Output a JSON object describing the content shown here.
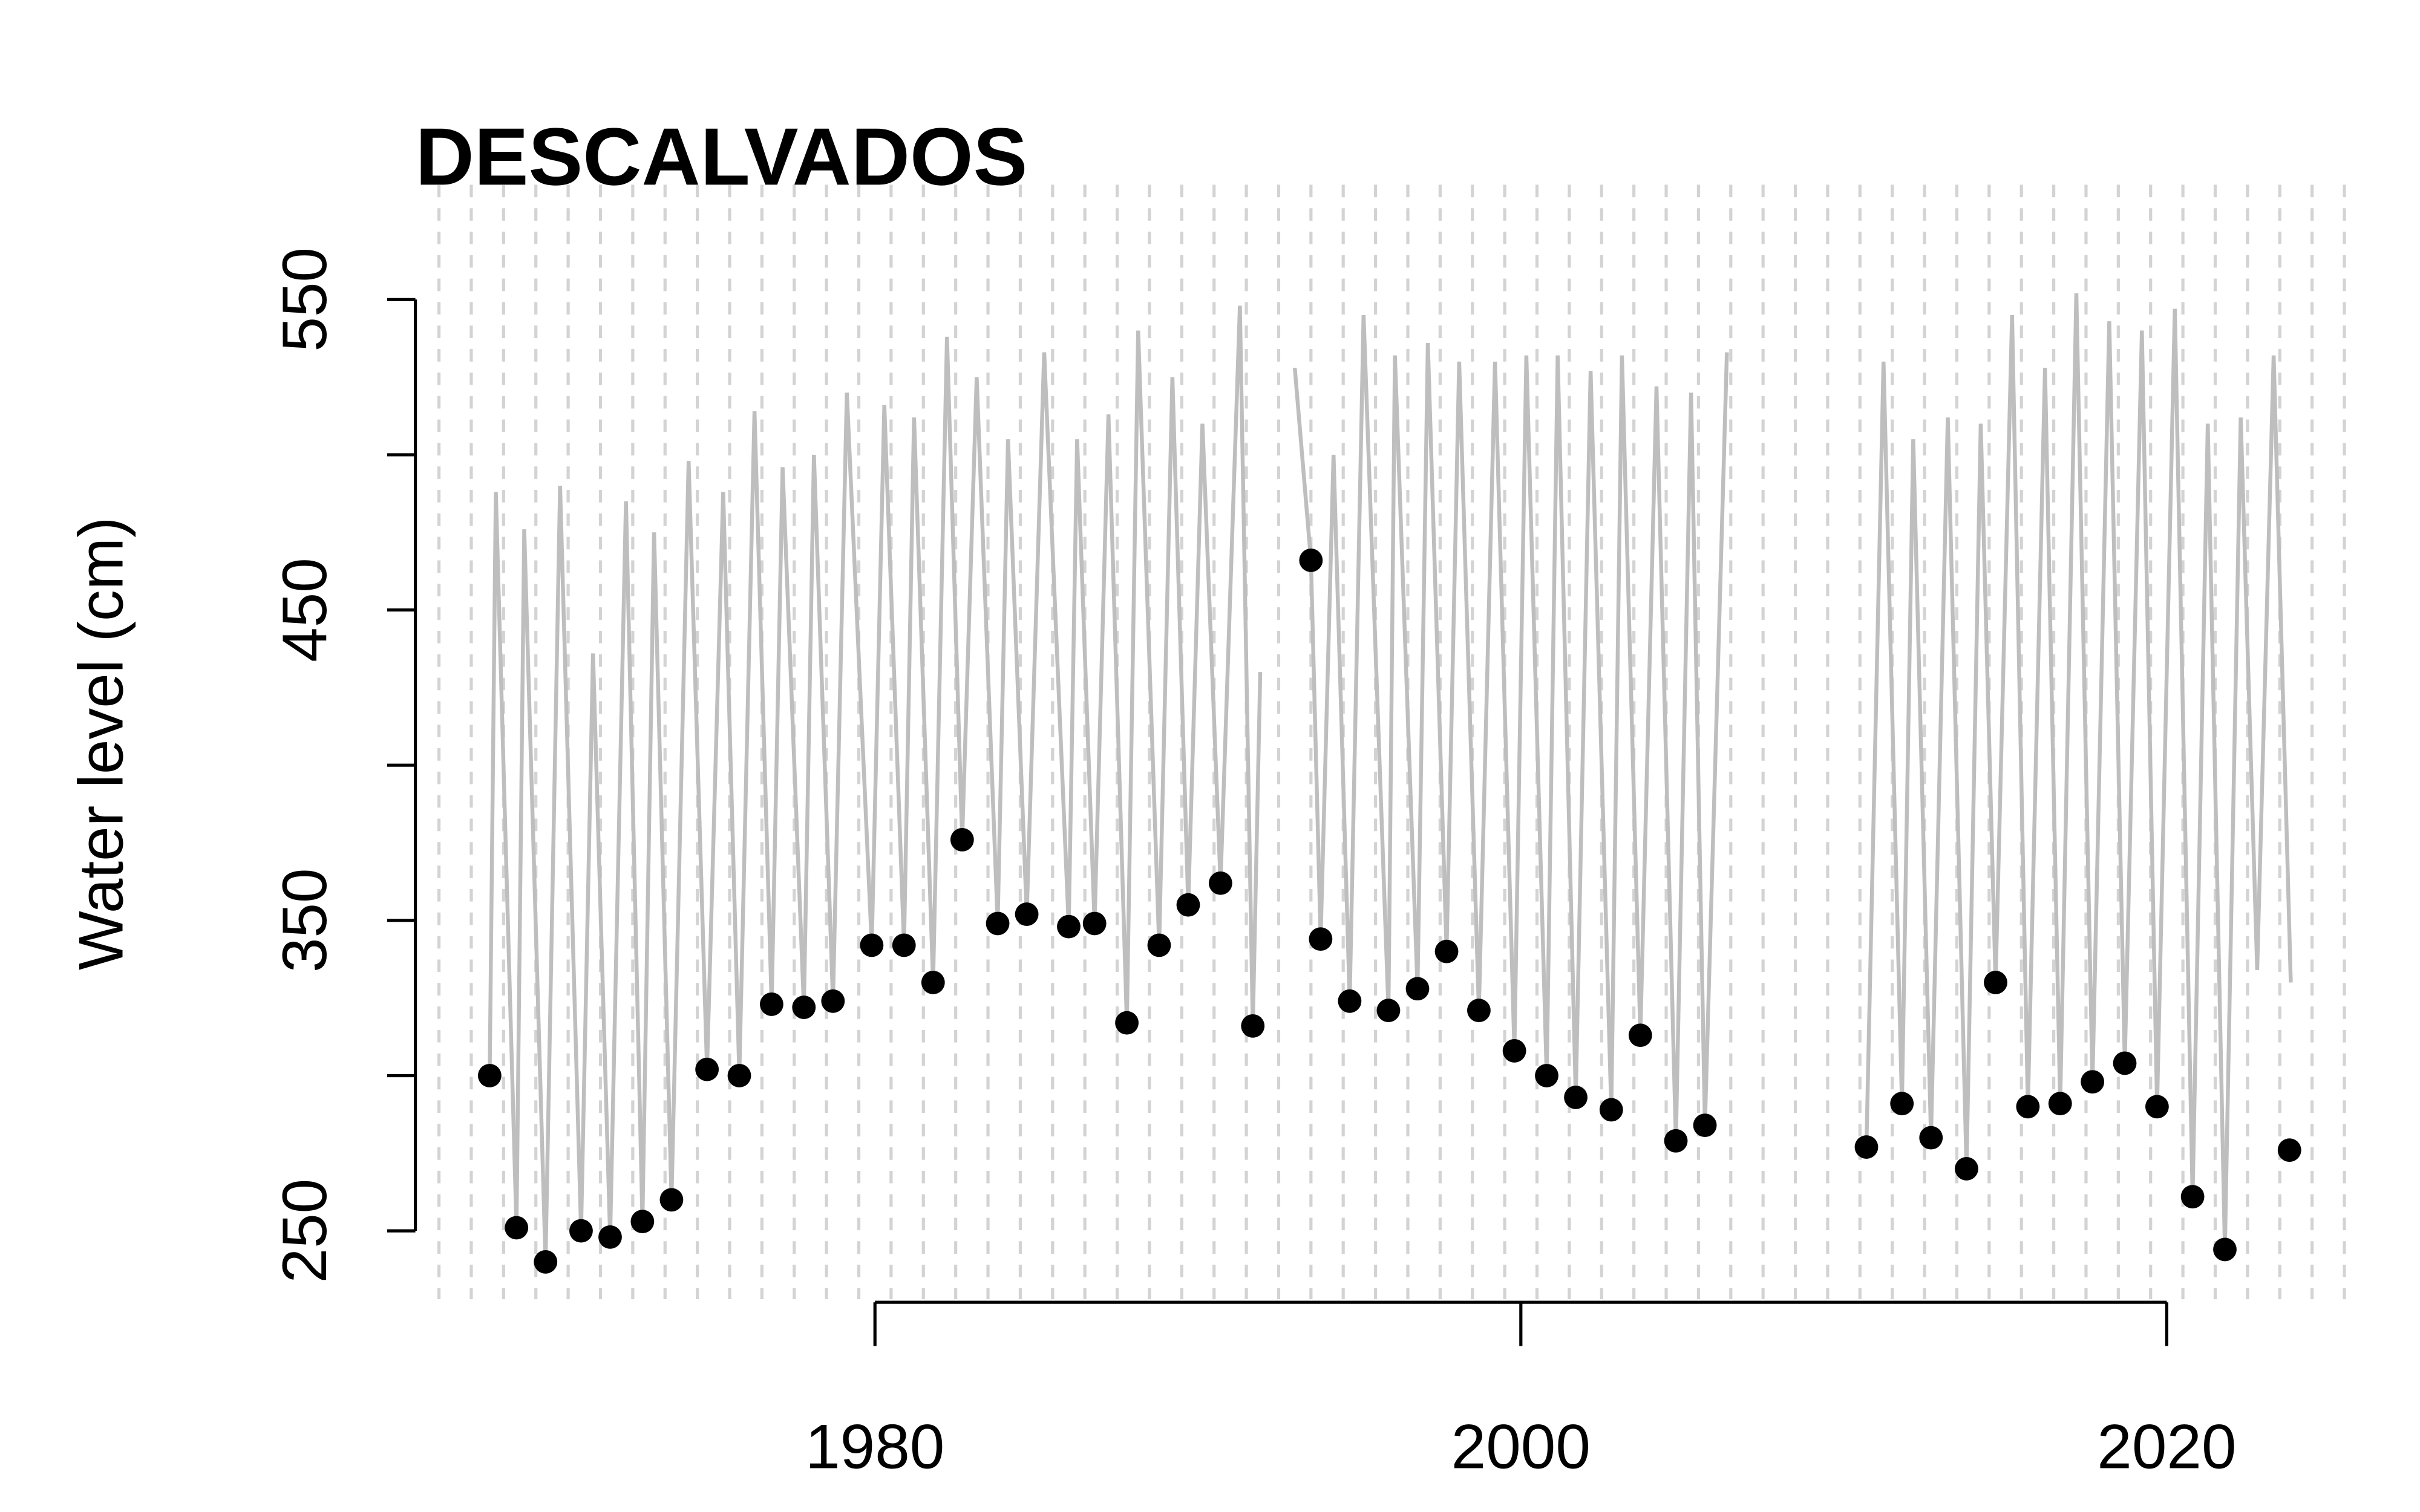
{
  "chart_data": {
    "type": "scatter",
    "title": "DESCALVADOS",
    "ylabel": "Water level (cm)",
    "xlim": [
      1966.4,
      2025.5
    ],
    "ylim": [
      228,
      587
    ],
    "xticks": [
      1980,
      2000,
      2020
    ],
    "yticks": [
      250,
      350,
      450,
      550
    ],
    "yticks_unlabeled": [
      300,
      400,
      500
    ],
    "xgrid": [
      1966.5,
      1967.5,
      1968.5,
      1969.5,
      1970.5,
      1971.5,
      1972.5,
      1973.5,
      1974.5,
      1975.5,
      1976.5,
      1977.5,
      1978.5,
      1979.5,
      1980.5,
      1981.5,
      1982.5,
      1983.5,
      1984.5,
      1985.5,
      1986.5,
      1987.5,
      1988.5,
      1989.5,
      1990.5,
      1991.5,
      1992.5,
      1993.5,
      1994.5,
      1995.5,
      1996.5,
      1997.5,
      1998.5,
      1999.5,
      2000.5,
      2001.5,
      2002.5,
      2003.5,
      2004.5,
      2005.5,
      2006.5,
      2007.5,
      2008.5,
      2009.5,
      2010.5,
      2011.5,
      2012.5,
      2013.5,
      2014.5,
      2015.5,
      2016.5,
      2017.5,
      2018.5,
      2019.5,
      2020.5,
      2021.5,
      2022.5,
      2023.5,
      2024.5,
      2025.5
    ],
    "series": [
      {
        "type": "line",
        "color": "#bebebe",
        "x": [
          1968.07,
          1968.26,
          1968.9,
          1969.14,
          1969.8,
          1970.25,
          1970.9,
          1971.27,
          1971.8,
          1972.29,
          1972.8,
          1973.16,
          1973.7,
          1974.23,
          1974.8,
          1975.3,
          1975.8,
          1976.27,
          1976.8,
          1977.14,
          1977.8,
          1978.11,
          1978.7,
          1979.13,
          1979.9,
          1980.29,
          1980.9,
          1981.21,
          1981.8,
          1982.23,
          1982.7,
          1983.15,
          1983.8,
          1984.12,
          1984.7,
          1985.24,
          1986.0,
          1986.26,
          1986.8,
          1987.23,
          1987.8,
          1988.15,
          1988.8,
          1989.21,
          1989.7,
          1990.14,
          1990.7,
          1991.3,
          1991.7,
          1991.93,
          1992.5,
          1993.0,
          1993.5,
          1993.8,
          1994.2,
          1994.7,
          1995.13,
          1995.9,
          1996.1,
          1996.8,
          1997.12,
          1997.7,
          1998.09,
          1998.7,
          1999.2,
          1999.8,
          2000.17,
          2000.8,
          2001.14,
          2001.7,
          2002.16,
          2002.8,
          2003.13,
          2003.7,
          2004.2,
          2004.8,
          2005.27,
          2005.7,
          2006.38,
          2008.0,
          2010.7,
          2011.23,
          2011.8,
          2012.15,
          2012.7,
          2013.22,
          2013.8,
          2014.24,
          2014.7,
          2015.21,
          2015.7,
          2016.23,
          2016.7,
          2017.2,
          2017.7,
          2018.22,
          2018.7,
          2019.23,
          2019.7,
          2020.25,
          2020.8,
          2021.27,
          2021.8,
          2022.29,
          2022.8,
          2023.31,
          2023.84
        ],
        "values": [
          300,
          488,
          251,
          476,
          240,
          490,
          250,
          436,
          248,
          485,
          253,
          475,
          260,
          498,
          302,
          488,
          300,
          514,
          323,
          496,
          322,
          500,
          324,
          520,
          342,
          516,
          342,
          512,
          330,
          538,
          376,
          525,
          349,
          505,
          352,
          533,
          348,
          505,
          349,
          513,
          317,
          540,
          342,
          525,
          355,
          510,
          362,
          548,
          316,
          430,
          null,
          528,
          466,
          344,
          500,
          324,
          545,
          321,
          532,
          328,
          536,
          340,
          530,
          321,
          530,
          308,
          532,
          300,
          532,
          293,
          527,
          289,
          532,
          313,
          522,
          279,
          520,
          284,
          533,
          null,
          277,
          530,
          291,
          505,
          280,
          512,
          270,
          510,
          330,
          545,
          290,
          528,
          291,
          552,
          298,
          543,
          304,
          540,
          290,
          547,
          261,
          510,
          244,
          512,
          334,
          532,
          330
        ]
      },
      {
        "type": "scatter",
        "color": "#000000",
        "x": [
          1968.07,
          1968.9,
          1969.8,
          1970.9,
          1971.8,
          1972.8,
          1973.7,
          1974.8,
          1975.8,
          1976.8,
          1977.8,
          1978.7,
          1979.9,
          1980.9,
          1981.8,
          1982.7,
          1983.8,
          1984.7,
          1986.0,
          1986.8,
          1987.8,
          1988.8,
          1989.7,
          1990.7,
          1991.7,
          1993.5,
          1993.8,
          1994.7,
          1995.9,
          1996.8,
          1997.7,
          1998.7,
          1999.8,
          2000.8,
          2001.7,
          2002.8,
          2003.7,
          2004.8,
          2005.7,
          2010.7,
          2011.8,
          2012.7,
          2013.8,
          2014.7,
          2015.7,
          2016.7,
          2017.7,
          2018.7,
          2019.7,
          2020.8,
          2021.8,
          2023.8
        ],
        "values": [
          300,
          251,
          240,
          250,
          248,
          253,
          260,
          302,
          300,
          323,
          322,
          324,
          342,
          342,
          330,
          376,
          349,
          352,
          348,
          349,
          317,
          342,
          355,
          362,
          316,
          466,
          344,
          324,
          321,
          328,
          340,
          321,
          308,
          300,
          293,
          289,
          313,
          279,
          284,
          277,
          291,
          280,
          270,
          330,
          290,
          291,
          298,
          304,
          290,
          261,
          244,
          276
        ]
      }
    ]
  }
}
